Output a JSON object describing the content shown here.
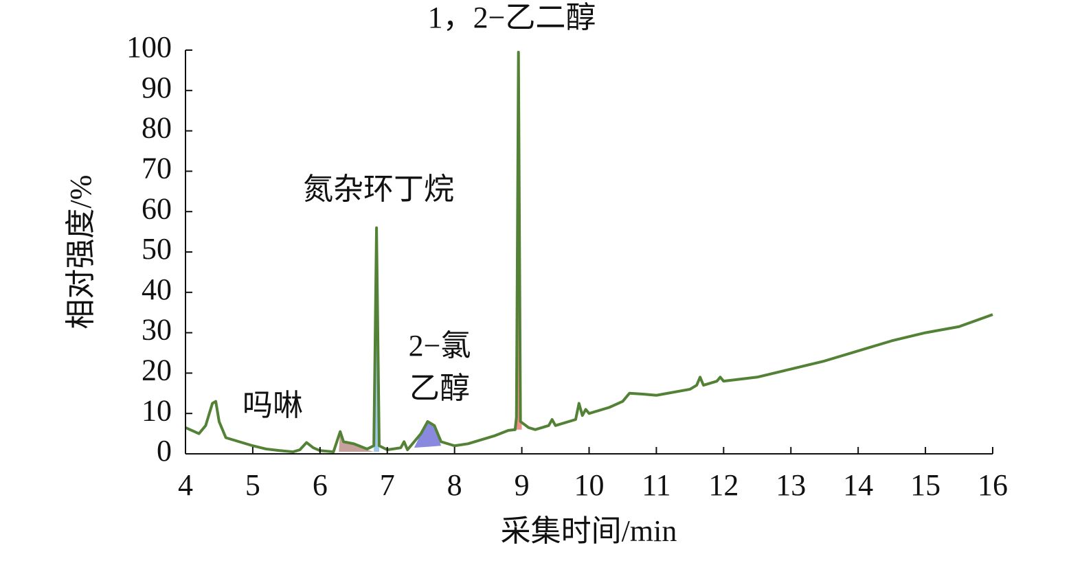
{
  "chart_data": {
    "type": "line",
    "xlabel": "采集时间/min",
    "ylabel": "相对强度/%",
    "xlim": [
      4,
      16
    ],
    "xticks": [
      4,
      5,
      6,
      7,
      8,
      9,
      10,
      11,
      12,
      13,
      14,
      15,
      16
    ],
    "ylim": [
      0,
      100
    ],
    "yticks": [
      0,
      10,
      20,
      30,
      40,
      50,
      60,
      70,
      80,
      90,
      100
    ],
    "annotations": [
      "吗啉",
      "氮杂环丁烷",
      "2−氯",
      "乙醇",
      "1，2−乙二醇"
    ],
    "series": [
      {
        "color": "#c9a19c",
        "fill": true,
        "x": [
          6.28,
          6.3,
          6.35,
          6.5,
          6.7,
          6.8
        ],
        "values": [
          0.5,
          6,
          3,
          2.5,
          1,
          0.5
        ]
      },
      {
        "color": "#9ec6e8",
        "fill": true,
        "x": [
          6.8,
          6.84,
          6.88
        ],
        "values": [
          0.5,
          53,
          0.5
        ]
      },
      {
        "color": "#8a89e0",
        "fill": true,
        "x": [
          7.4,
          7.5,
          7.6,
          7.7,
          7.8
        ],
        "values": [
          1.5,
          5,
          8,
          7,
          2
        ]
      },
      {
        "color": "#f0928a",
        "fill": true,
        "x": [
          8.9,
          8.95,
          9.0
        ],
        "values": [
          6,
          90,
          6
        ]
      },
      {
        "color": "#538135",
        "fill": false,
        "x": [
          4.0,
          4.2,
          4.3,
          4.4,
          4.45,
          4.5,
          4.6,
          4.8,
          5.0,
          5.2,
          5.4,
          5.6,
          5.7,
          5.8,
          5.9,
          6.0,
          6.2,
          6.3,
          6.35,
          6.5,
          6.7,
          6.8,
          6.84,
          6.88,
          7.0,
          7.2,
          7.25,
          7.3,
          7.5,
          7.6,
          7.7,
          7.8,
          8.0,
          8.2,
          8.4,
          8.6,
          8.8,
          8.9,
          8.92,
          8.95,
          8.98,
          9.1,
          9.2,
          9.4,
          9.45,
          9.5,
          9.8,
          9.85,
          9.9,
          9.95,
          10.0,
          10.3,
          10.5,
          10.6,
          10.8,
          11.0,
          11.5,
          11.6,
          11.65,
          11.7,
          11.9,
          11.95,
          12.0,
          12.5,
          13.0,
          13.5,
          14.0,
          14.5,
          15.0,
          15.5,
          16.0
        ],
        "values": [
          6.5,
          5,
          7,
          12.5,
          13,
          8,
          4,
          3,
          2,
          1.2,
          0.8,
          0.5,
          1,
          2.8,
          1.5,
          0.8,
          0.5,
          5.5,
          3,
          2.5,
          1.2,
          2,
          56,
          2,
          1,
          1.5,
          3,
          1,
          5,
          8,
          7,
          3,
          2,
          2.5,
          3.5,
          4.5,
          5.8,
          6,
          9,
          99.5,
          8,
          6.5,
          6,
          7,
          8.5,
          7,
          8.5,
          12.5,
          9.5,
          11,
          10,
          11.5,
          13,
          15,
          14.8,
          14.5,
          16,
          17,
          19,
          17,
          18,
          19,
          18,
          19,
          21,
          23,
          25.5,
          28,
          30,
          31.5,
          34.5
        ]
      }
    ]
  }
}
